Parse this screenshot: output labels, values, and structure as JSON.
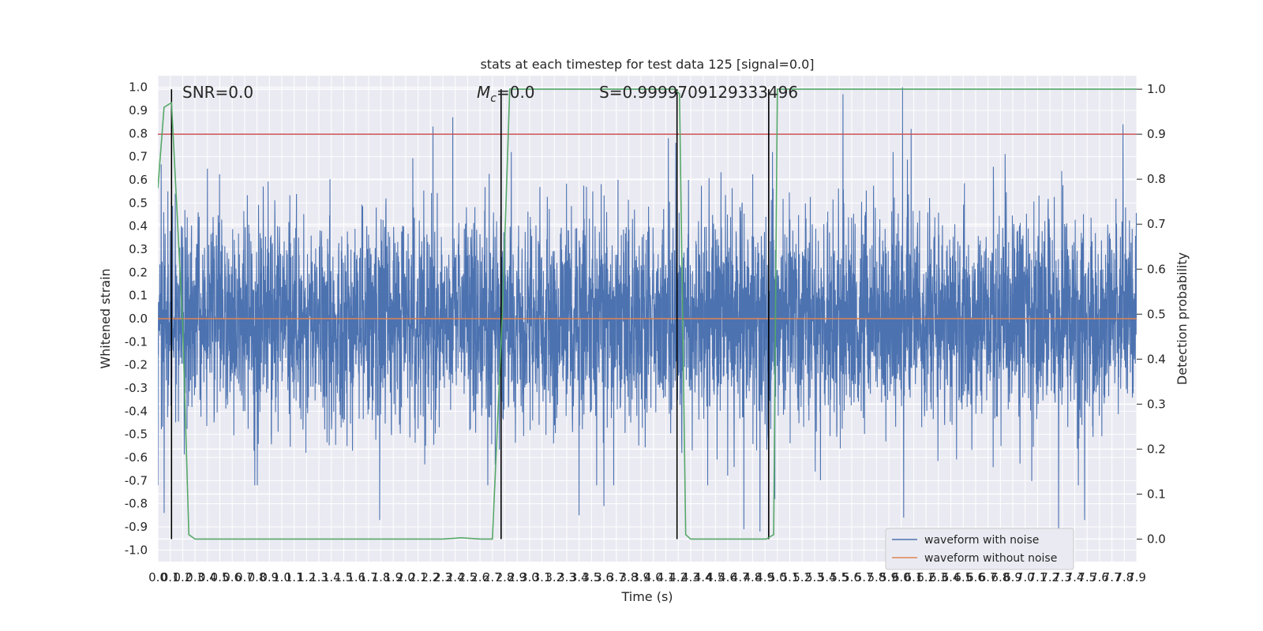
{
  "chart_data": {
    "type": "line",
    "title": "stats at each timestep for test data 125 [signal=0.0]",
    "xlabel": "Time (s)",
    "ylabel_left": "Whitened strain",
    "ylabel_right": "Detection probability",
    "xlim": [
      0.0,
      7.9
    ],
    "ylim_left": [
      -1.05,
      1.05
    ],
    "ylim_right": [
      -0.05,
      1.03
    ],
    "x_tick_step": 0.1,
    "y_ticks_left": [
      -1.0,
      -0.9,
      -0.8,
      -0.7,
      -0.6,
      -0.5,
      -0.4,
      -0.3,
      -0.2,
      -0.1,
      0.0,
      0.1,
      0.2,
      0.3,
      0.4,
      0.5,
      0.6,
      0.7,
      0.8,
      0.9,
      1.0
    ],
    "y_ticks_right": [
      0.0,
      0.1,
      0.2,
      0.3,
      0.4,
      0.5,
      0.6,
      0.7,
      0.8,
      0.9,
      1.0
    ],
    "grid": true,
    "annotations": {
      "snr": "SNR=0.0",
      "mc_symbol": "M",
      "mc_sub": "c",
      "mc_value": "=0.0",
      "s": "S=0.9999709129333496"
    },
    "threshold": {
      "axis": "right",
      "value": 0.9,
      "color": "#c44e52"
    },
    "vertical_lines_x": [
      0.11,
      2.77,
      4.19,
      4.93
    ],
    "series": [
      {
        "name": "waveform with noise",
        "axis": "left",
        "color": "#4c72b0",
        "kind": "noise",
        "band_typical": 0.28,
        "extreme_high": [
          [
            0.08,
            0.55
          ],
          [
            0.14,
            0.54
          ],
          [
            2.22,
            0.83
          ],
          [
            2.38,
            0.87
          ],
          [
            4.12,
            0.78
          ],
          [
            4.18,
            0.76
          ],
          [
            5.53,
            0.97
          ],
          [
            6.01,
            1.0
          ],
          [
            6.08,
            0.82
          ],
          [
            7.79,
            0.84
          ]
        ],
        "extreme_low": [
          [
            0.05,
            -0.84
          ],
          [
            1.79,
            -0.87
          ],
          [
            3.4,
            -0.85
          ],
          [
            3.6,
            -0.81
          ],
          [
            4.73,
            -0.91
          ],
          [
            4.86,
            -0.92
          ],
          [
            4.98,
            -0.78
          ],
          [
            6.02,
            -0.86
          ],
          [
            7.27,
            -0.94
          ],
          [
            7.48,
            -0.87
          ]
        ]
      },
      {
        "name": "waveform without noise",
        "axis": "left",
        "color": "#dd8452",
        "x": [
          0.0,
          7.9
        ],
        "y": [
          0.0,
          0.0
        ]
      },
      {
        "name": "Detection probability",
        "axis": "right",
        "color": "#55a868",
        "x": [
          0.0,
          0.05,
          0.11,
          0.2,
          0.25,
          0.3,
          1.0,
          2.0,
          2.3,
          2.45,
          2.6,
          2.7,
          2.78,
          2.84,
          3.5,
          4.1,
          4.17,
          4.21,
          4.26,
          4.3,
          4.5,
          4.85,
          4.91,
          4.97,
          5.0,
          7.9
        ],
        "y": [
          0.78,
          0.96,
          0.97,
          0.48,
          0.01,
          0.0,
          0.0,
          0.0,
          0.0,
          0.003,
          0.0,
          0.0,
          0.5,
          1.0,
          1.0,
          1.0,
          1.0,
          0.99,
          0.01,
          0.0,
          0.0,
          0.0,
          0.0,
          0.01,
          1.0,
          1.0
        ]
      }
    ],
    "legend": {
      "placement": "lower right",
      "entries": [
        "waveform with noise",
        "waveform without noise"
      ]
    }
  }
}
